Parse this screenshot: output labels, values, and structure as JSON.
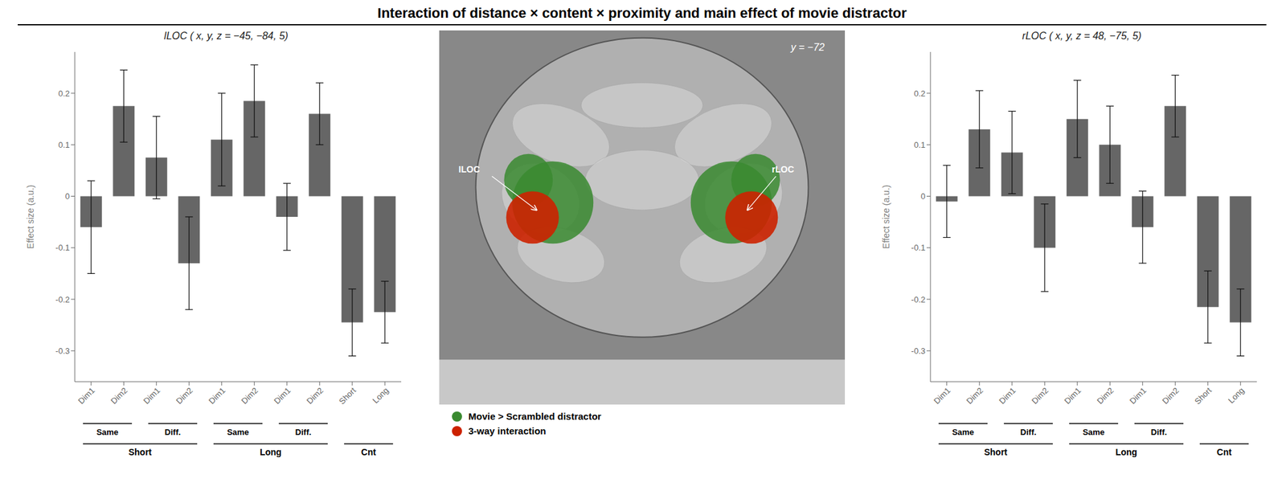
{
  "title": "Interaction of distance × content × proximity and main effect of movie distractor",
  "chart_data": [
    {
      "type": "bar",
      "title": "lLOC ( x, y, z = −45, −84, 5)",
      "ylabel": "Effect size (a.u.)",
      "categories": [
        "Dim1",
        "Dim2",
        "Dim1",
        "Dim2",
        "Dim1",
        "Dim2",
        "Dim1",
        "Dim2",
        "Short",
        "Long"
      ],
      "values": [
        -0.06,
        0.175,
        0.075,
        -0.13,
        0.11,
        0.185,
        -0.04,
        0.16,
        -0.245,
        -0.225
      ],
      "errors": [
        0.09,
        0.07,
        0.08,
        0.09,
        0.09,
        0.07,
        0.065,
        0.06,
        0.065,
        0.06
      ],
      "color": "#666666",
      "ylim": [
        -0.36,
        0.28
      ],
      "yticks": [
        -0.3,
        -0.2,
        -0.1,
        0,
        0.1,
        0.2
      ],
      "grid": false,
      "category_groups": [
        {
          "label": "Same",
          "from": 0,
          "to": 1,
          "level": 1
        },
        {
          "label": "Diff.",
          "from": 2,
          "to": 3,
          "level": 1
        },
        {
          "label": "Same",
          "from": 4,
          "to": 5,
          "level": 1
        },
        {
          "label": "Diff.",
          "from": 6,
          "to": 7,
          "level": 1
        },
        {
          "label": "Short",
          "from": 0,
          "to": 3,
          "level": 2
        },
        {
          "label": "Long",
          "from": 4,
          "to": 7,
          "level": 2
        },
        {
          "label": "Cnt",
          "from": 8,
          "to": 9,
          "level": 2
        }
      ]
    },
    {
      "type": "bar",
      "title": "rLOC ( x, y, z = 48, −75, 5)",
      "ylabel": "Effect size (a.u.)",
      "categories": [
        "Dim1",
        "Dim2",
        "Dim1",
        "Dim2",
        "Dim1",
        "Dim2",
        "Dim1",
        "Dim2",
        "Short",
        "Long"
      ],
      "values": [
        -0.01,
        0.13,
        0.085,
        -0.1,
        0.15,
        0.1,
        -0.06,
        0.175,
        -0.215,
        -0.245
      ],
      "errors": [
        0.07,
        0.075,
        0.08,
        0.085,
        0.075,
        0.075,
        0.07,
        0.06,
        0.07,
        0.065
      ],
      "color": "#666666",
      "ylim": [
        -0.36,
        0.28
      ],
      "yticks": [
        -0.3,
        -0.2,
        -0.1,
        0,
        0.1,
        0.2
      ],
      "grid": false,
      "category_groups": [
        {
          "label": "Same",
          "from": 0,
          "to": 1,
          "level": 1
        },
        {
          "label": "Diff.",
          "from": 2,
          "to": 3,
          "level": 1
        },
        {
          "label": "Same",
          "from": 4,
          "to": 5,
          "level": 1
        },
        {
          "label": "Diff.",
          "from": 6,
          "to": 7,
          "level": 1
        },
        {
          "label": "Short",
          "from": 0,
          "to": 3,
          "level": 2
        },
        {
          "label": "Long",
          "from": 4,
          "to": 7,
          "level": 2
        },
        {
          "label": "Cnt",
          "from": 8,
          "to": 9,
          "level": 2
        }
      ]
    }
  ],
  "image": {
    "annotations": [
      {
        "text": "ILOC"
      },
      {
        "text": "rLOC"
      },
      {
        "text": "y = −72"
      }
    ],
    "series": [
      {
        "name": "Movie > Scrambled distractor",
        "color": "#3a8a30"
      },
      {
        "name": "3-way interaction",
        "color": "#cc2200"
      }
    ]
  }
}
